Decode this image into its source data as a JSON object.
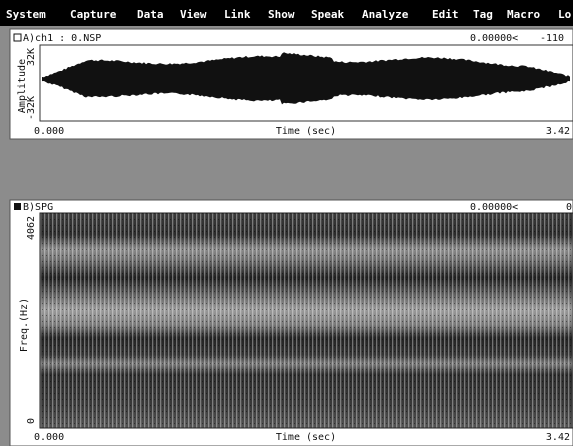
{
  "menu": {
    "items": [
      "System",
      "Capture",
      "Data",
      "View",
      "Link",
      "Show",
      "Speak",
      "Analyze",
      "Edit",
      "Tag",
      "Macro",
      "Lo"
    ]
  },
  "window_a": {
    "title": "A)ch1 : 0.NSP",
    "cursor": "0.00000<",
    "cursor_value": "-110",
    "y_max": "32K",
    "y_min": "-32K",
    "y_label": "Amplitude",
    "x_start": "0.000",
    "x_label": "Time (sec)",
    "x_end": "3.42"
  },
  "window_b": {
    "title": "B)SPG",
    "cursor": "0.00000<",
    "cursor_value": "0",
    "y_max": "4062",
    "y_min": "0",
    "y_label": "Freq.(Hz)",
    "x_start": "0.000",
    "x_label": "Time (sec)",
    "x_end": "3.42"
  }
}
